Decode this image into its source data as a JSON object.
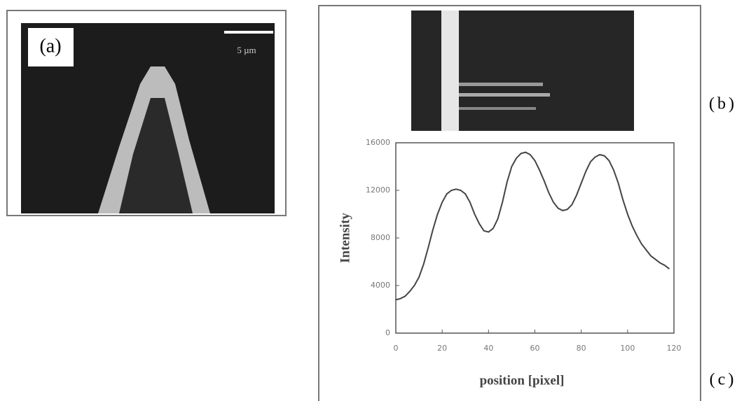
{
  "figure": {
    "panel_a": {
      "label": "(a)",
      "scale_bar": "5 µm"
    },
    "panel_b_label": "(b)",
    "panel_c_label": "(c)"
  },
  "chart_data": {
    "type": "line",
    "x_label": "position [pixel]",
    "y_label": "Intensity",
    "x": [
      0,
      2,
      4,
      6,
      8,
      10,
      12,
      14,
      16,
      18,
      20,
      22,
      24,
      26,
      28,
      30,
      32,
      34,
      36,
      38,
      40,
      42,
      44,
      46,
      48,
      50,
      52,
      54,
      56,
      58,
      60,
      62,
      64,
      66,
      68,
      70,
      72,
      74,
      76,
      78,
      80,
      82,
      84,
      86,
      88,
      90,
      92,
      94,
      96,
      98,
      100,
      102,
      104,
      106,
      108,
      110,
      112,
      114,
      116,
      118
    ],
    "series": [
      {
        "color": "#444444",
        "values": [
          2800,
          2900,
          3100,
          3500,
          4000,
          4700,
          5800,
          7200,
          8700,
          10000,
          11000,
          11700,
          12000,
          12100,
          12000,
          11700,
          11000,
          10000,
          9200,
          8600,
          8500,
          8800,
          9600,
          11000,
          12700,
          14000,
          14700,
          15100,
          15200,
          15000,
          14500,
          13700,
          12800,
          11800,
          11000,
          10500,
          10300,
          10400,
          10800,
          11600,
          12600,
          13600,
          14400,
          14800,
          15000,
          14900,
          14500,
          13700,
          12600,
          11200,
          10000,
          9000,
          8200,
          7500,
          7000,
          6500,
          6200,
          5900,
          5700,
          5400
        ]
      }
    ],
    "xlim": [
      0,
      120
    ],
    "xticks": [
      0,
      20,
      40,
      60,
      80,
      100,
      120
    ],
    "ylim": [
      0,
      16000
    ],
    "yticks": [
      0,
      4000,
      8000,
      12000,
      16000
    ]
  }
}
